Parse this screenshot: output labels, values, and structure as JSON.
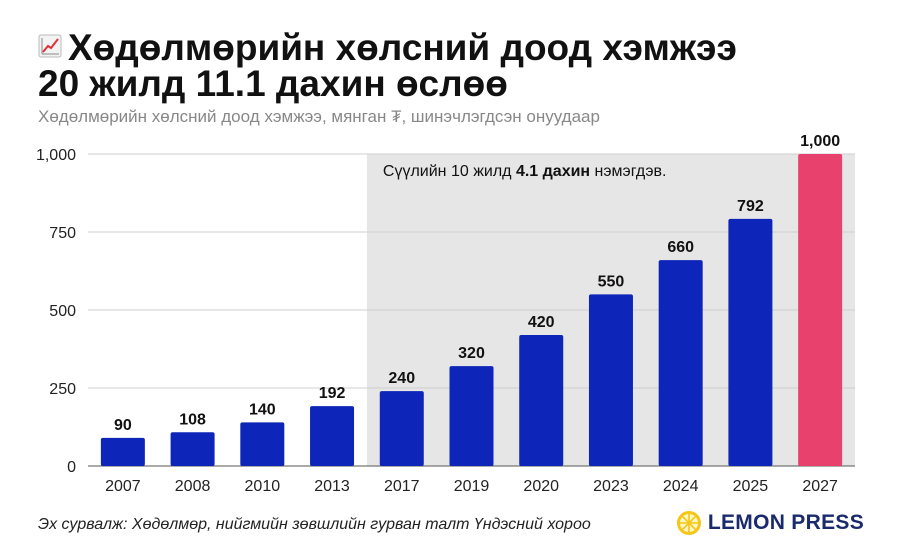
{
  "header": {
    "title_line1": "Хөдөлмөрийн хөлсний доод хэмжээ",
    "title_line2": "20 жилд 11.1 дахин өслөө",
    "subtitle": "Хөдөлмөрийн хөлсний доод хэмжээ, мянган ₮, шинэчлэгдсэн онуудаар",
    "title_icon": "chart-increasing-icon"
  },
  "chart_data": {
    "type": "bar",
    "categories": [
      "2007",
      "2008",
      "2010",
      "2013",
      "2017",
      "2019",
      "2020",
      "2023",
      "2024",
      "2025",
      "2027"
    ],
    "values": [
      90,
      108,
      140,
      192,
      240,
      320,
      420,
      550,
      660,
      792,
      1000
    ],
    "value_labels": [
      "90",
      "108",
      "140",
      "192",
      "240",
      "320",
      "420",
      "550",
      "660",
      "792",
      "1,000"
    ],
    "ylim": [
      0,
      1000
    ],
    "yticks": [
      0,
      250,
      500,
      750,
      1000
    ],
    "ytick_labels": [
      "0",
      "250",
      "500",
      "750",
      "1,000"
    ],
    "grid": true,
    "bar_color": "#0d25b8",
    "highlight_color": "#e8416d",
    "highlight_index": 10,
    "shaded_region": {
      "from_category": "2017",
      "to_category": "2027",
      "color": "#e6e6e6"
    },
    "annotation": {
      "text_before": "Сүүлийн 10 жилд ",
      "text_bold": "4.1 дахин",
      "text_after": " нэмэгдэв."
    }
  },
  "footer": {
    "source": "Эх сурвалж: Хөдөлмөр, нийгмийн зөвшлийн гурван талт Үндэсний хороо",
    "brand": "LEMON PRESS",
    "brand_color": "#1a2a6c",
    "brand_icon": "lemon-icon"
  }
}
